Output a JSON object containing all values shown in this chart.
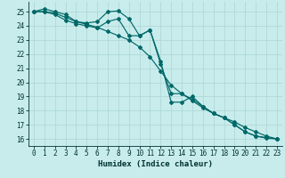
{
  "xlabel": "Humidex (Indice chaleur)",
  "bg_color": "#c8ecec",
  "grid_color": "#b0d8d8",
  "line_color": "#006868",
  "xlim": [
    -0.5,
    23.5
  ],
  "ylim": [
    15.5,
    25.7
  ],
  "yticks": [
    16,
    17,
    18,
    19,
    20,
    21,
    22,
    23,
    24,
    25
  ],
  "xticks": [
    0,
    1,
    2,
    3,
    4,
    5,
    6,
    7,
    8,
    9,
    10,
    11,
    12,
    13,
    14,
    15,
    16,
    17,
    18,
    19,
    20,
    21,
    22,
    23
  ],
  "series1_x": [
    0,
    1,
    2,
    3,
    4,
    5,
    6,
    7,
    8,
    9,
    10,
    11,
    12,
    13,
    14,
    15,
    16,
    17,
    18,
    19,
    20,
    21,
    22,
    23
  ],
  "series1_y": [
    25.0,
    25.2,
    25.0,
    24.8,
    24.3,
    24.2,
    24.3,
    25.0,
    25.05,
    24.5,
    23.3,
    23.7,
    21.5,
    18.6,
    18.6,
    19.0,
    18.3,
    17.8,
    17.5,
    17.0,
    16.5,
    16.2,
    16.1,
    16.0
  ],
  "series2_x": [
    0,
    1,
    2,
    3,
    4,
    5,
    6,
    7,
    8,
    9,
    10,
    11,
    12,
    13,
    14,
    15,
    16,
    17,
    18,
    19,
    20,
    21,
    22,
    23
  ],
  "series2_y": [
    25.0,
    25.0,
    24.8,
    24.4,
    24.15,
    24.0,
    23.85,
    24.3,
    24.5,
    23.3,
    23.3,
    23.7,
    21.3,
    19.2,
    19.2,
    18.8,
    18.3,
    17.8,
    17.5,
    17.0,
    16.5,
    16.2,
    16.05,
    16.0
  ],
  "series3_x": [
    0,
    1,
    2,
    3,
    4,
    5,
    6,
    7,
    8,
    9,
    10,
    11,
    12,
    13,
    14,
    15,
    16,
    17,
    18,
    19,
    20,
    21,
    22,
    23
  ],
  "series3_y": [
    25.0,
    25.0,
    24.9,
    24.6,
    24.3,
    24.1,
    23.9,
    23.6,
    23.3,
    23.0,
    22.5,
    21.8,
    20.8,
    19.8,
    19.2,
    18.7,
    18.2,
    17.8,
    17.5,
    17.2,
    16.8,
    16.5,
    16.2,
    16.0
  ]
}
